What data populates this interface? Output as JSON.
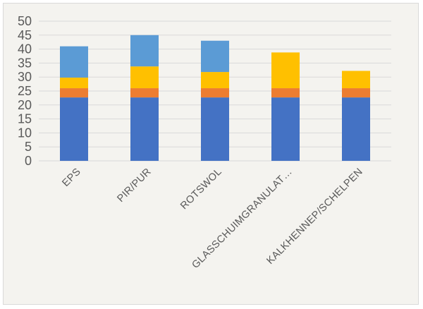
{
  "chart_data": {
    "type": "bar",
    "stacked": true,
    "title": "",
    "xlabel": "",
    "ylabel": "",
    "ylim": [
      0,
      50
    ],
    "yticks": [
      "0",
      "5",
      "10",
      "15",
      "20",
      "25",
      "30",
      "35",
      "40",
      "45",
      "50"
    ],
    "grid": true,
    "legend": "none",
    "categories": [
      "EPS",
      "PIR/PUR",
      "ROTSWOL",
      "GLASSCHUIMGRANULAT…",
      "KALKHENNEP/SCHELPEN"
    ],
    "series": [
      {
        "color": "#4472c4",
        "values": [
          22.7,
          22.7,
          22.7,
          22.7,
          22.7
        ]
      },
      {
        "color": "#ed7d31",
        "values": [
          3.3,
          3.3,
          3.3,
          3.3,
          3.3
        ]
      },
      {
        "color": "#ffc000",
        "values": [
          3.8,
          7.8,
          5.8,
          12.8,
          6.2
        ]
      },
      {
        "color": "#5b9bd5",
        "values": [
          11.2,
          11.2,
          11.2,
          0,
          0
        ]
      }
    ]
  }
}
